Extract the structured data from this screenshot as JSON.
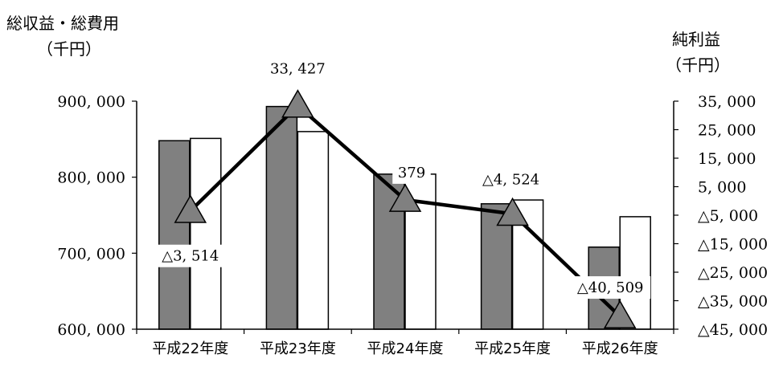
{
  "chart_data": {
    "type": "bar",
    "categories": [
      "平成22年度",
      "平成23年度",
      "平成24年度",
      "平成25年度",
      "平成26年度"
    ],
    "left_axis": {
      "title_line1": "総収益・総費用",
      "title_line2": "（千円）",
      "ylim": [
        600000,
        900000
      ],
      "ticks": [
        "900, 000",
        "800, 000",
        "700, 000",
        "600, 000"
      ],
      "tick_values": [
        900000,
        800000,
        700000,
        600000
      ]
    },
    "right_axis": {
      "title_line1": "純利益",
      "title_line2": "（千円）",
      "ylim": [
        -45000,
        35000
      ],
      "ticks": [
        "35, 000",
        "25, 000",
        "15, 000",
        "5, 000",
        "△5, 000",
        "△15, 000",
        "△25, 000",
        "△35, 000",
        "△45, 000"
      ],
      "tick_values": [
        35000,
        25000,
        15000,
        5000,
        -5000,
        -15000,
        -25000,
        -35000,
        -45000
      ]
    },
    "series": [
      {
        "kind": "bar",
        "color": "#808080",
        "values": [
          848000,
          893000,
          804000,
          765000,
          708000
        ]
      },
      {
        "kind": "bar",
        "color": "#ffffff",
        "values": [
          851000,
          860000,
          804000,
          770000,
          748000
        ]
      },
      {
        "kind": "line",
        "axis": "right",
        "color": "#000000",
        "marker": "triangle",
        "marker_color": "#808080",
        "values": [
          -3514,
          33427,
          379,
          -4524,
          -40509
        ],
        "labels": [
          "△3, 514",
          "33, 427",
          "379",
          "△4, 524",
          "△40, 509"
        ]
      }
    ],
    "grid": false,
    "legend": "none"
  }
}
